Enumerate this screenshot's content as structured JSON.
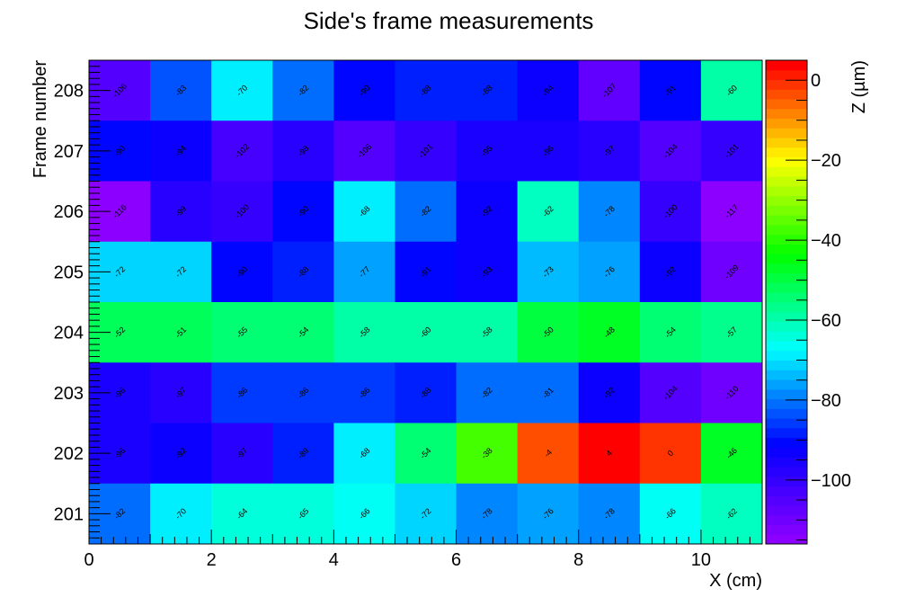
{
  "chart_data": {
    "type": "heatmap",
    "title": "Side's frame measurements",
    "xlabel": "X (cm)",
    "ylabel": "Frame number",
    "zlabel": "Z (µm)",
    "xlim": [
      0,
      11
    ],
    "ylim": [
      200.5,
      208.5
    ],
    "zlim": [
      -116,
      5
    ],
    "x_bin_edges": [
      0,
      1,
      2,
      3,
      4,
      5,
      6,
      7,
      8,
      9,
      10,
      11
    ],
    "x_ticks": [
      0,
      2,
      4,
      6,
      8,
      10
    ],
    "x_tick_labels": [
      "0",
      "2",
      "4",
      "6",
      "8",
      "10"
    ],
    "y_categories": [
      "201",
      "202",
      "203",
      "204",
      "205",
      "206",
      "207",
      "208"
    ],
    "z_ticks": [
      0,
      -20,
      -40,
      -60,
      -80,
      -100
    ],
    "z_tick_labels": [
      "0",
      "−20",
      "−40",
      "−60",
      "−80",
      "−100"
    ],
    "colormap": [
      "#8c00ff",
      "#0000ff",
      "#00ffff",
      "#00ff00",
      "#ffff00",
      "#ff0000"
    ],
    "rows": [
      {
        "frame": "208",
        "values": [
          -106,
          -83,
          -70,
          -82,
          -90,
          -88,
          -88,
          -94,
          -107,
          -91,
          -60
        ]
      },
      {
        "frame": "207",
        "values": [
          -90,
          -94,
          -102,
          -98,
          -106,
          -101,
          -95,
          -96,
          -97,
          -104,
          -101
        ]
      },
      {
        "frame": "206",
        "values": [
          -116,
          -99,
          -100,
          -90,
          -68,
          -82,
          -92,
          -62,
          -78,
          -100,
          -117
        ]
      },
      {
        "frame": "205",
        "values": [
          -72,
          -72,
          -90,
          -88,
          -77,
          -91,
          -93,
          -73,
          -76,
          -92,
          -109
        ]
      },
      {
        "frame": "204",
        "values": [
          -52,
          -51,
          -55,
          -54,
          -58,
          -60,
          -58,
          -50,
          -48,
          -54,
          -57
        ]
      },
      {
        "frame": "203",
        "values": [
          -96,
          -97,
          -86,
          -86,
          -86,
          -88,
          -82,
          -81,
          -92,
          -104,
          -110
        ]
      },
      {
        "frame": "202",
        "values": [
          -96,
          -92,
          -97,
          -89,
          -68,
          -54,
          -38,
          -4,
          4,
          0,
          -46
        ]
      },
      {
        "frame": "201",
        "values": [
          -82,
          -70,
          -64,
          -65,
          -66,
          -72,
          -78,
          -76,
          -78,
          -66,
          -62
        ]
      }
    ]
  }
}
